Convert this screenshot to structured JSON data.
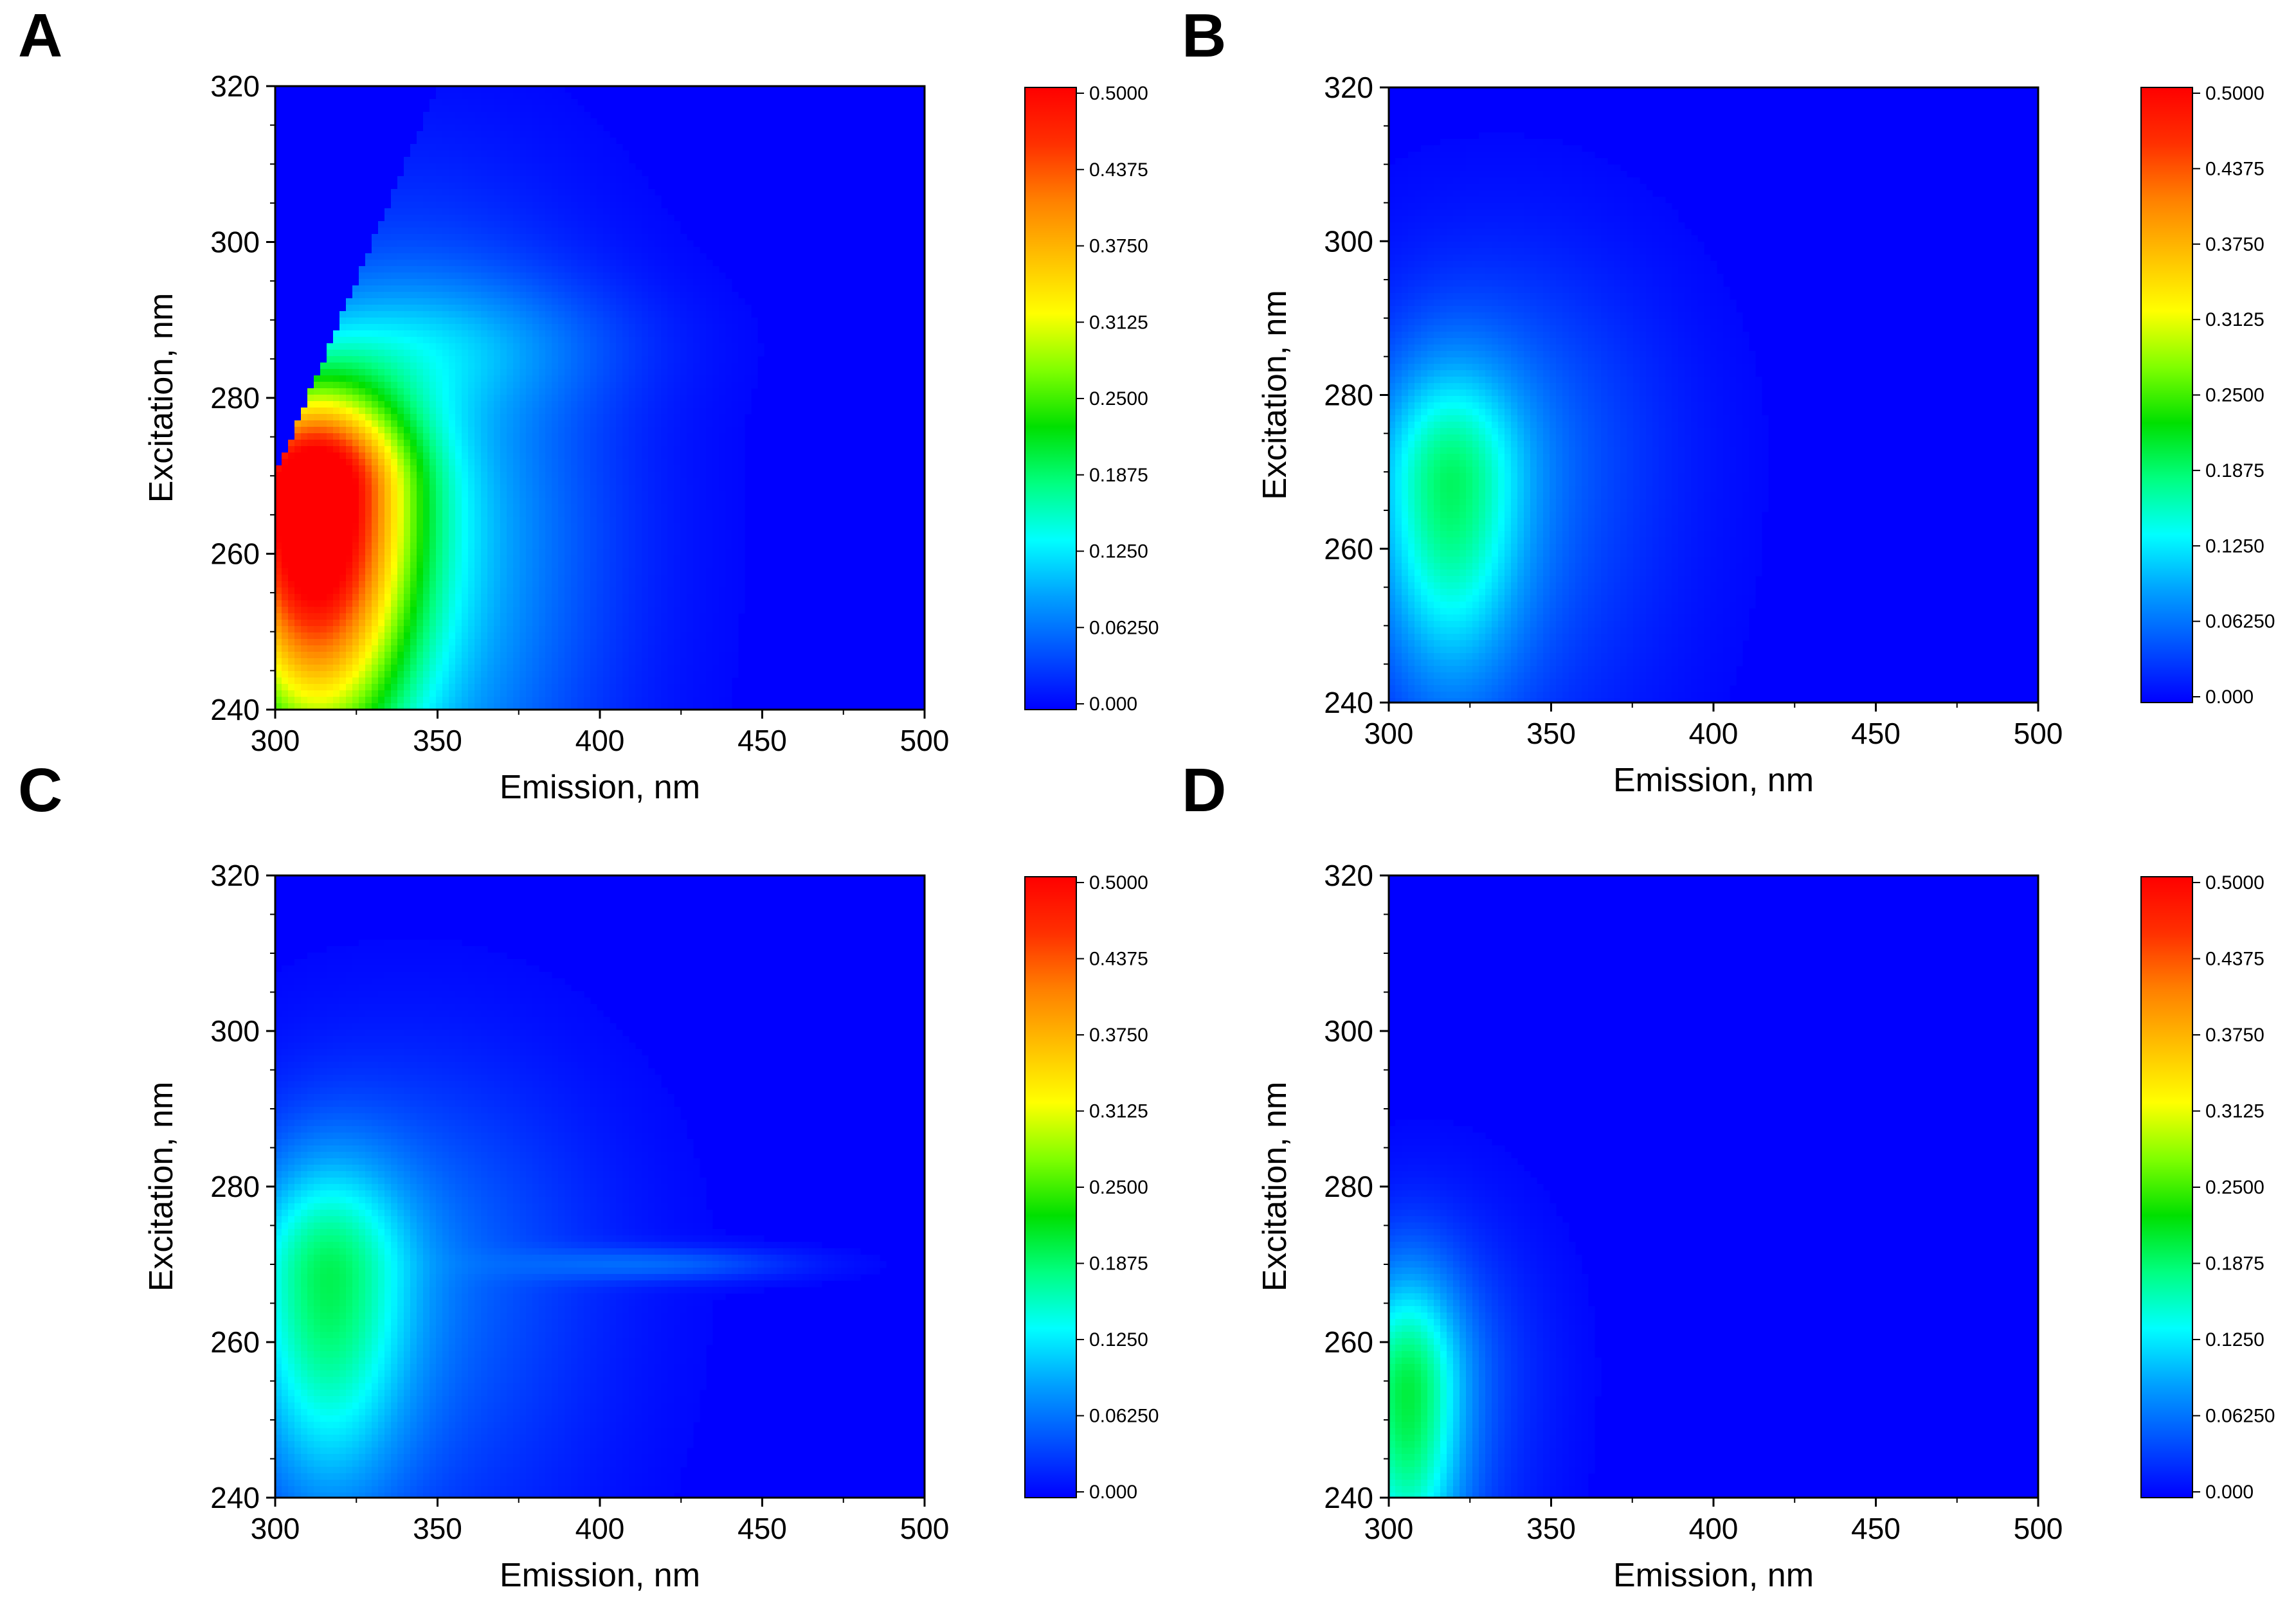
{
  "colors": {
    "background": "#0000ff",
    "colormap": [
      "#0000ff",
      "#0050ff",
      "#00a0ff",
      "#00ffff",
      "#00ff80",
      "#00e000",
      "#80ff00",
      "#ffff00",
      "#ffc000",
      "#ff8000",
      "#ff3000",
      "#ff0000"
    ]
  },
  "chart_data": [
    {
      "type": "heatmap",
      "panel": "A",
      "xlabel": "Emission, nm",
      "ylabel": "Excitation, nm",
      "xlim": [
        300,
        500
      ],
      "ylim": [
        240,
        320
      ],
      "x_ticks": [
        "300",
        "350",
        "400",
        "450",
        "500"
      ],
      "y_ticks": [
        "240",
        "260",
        "280",
        "300",
        "320"
      ],
      "colorbar": {
        "range": [
          0,
          0.5
        ],
        "labels": [
          "0.000",
          "0.06250",
          "0.1250",
          "0.1875",
          "0.2500",
          "0.3125",
          "0.3750",
          "0.4375",
          "0.5000"
        ]
      },
      "scatter_cutoff": {
        "emission_at_ex_270": 300,
        "emission_at_ex_300": 330
      },
      "features": [
        {
          "emission": 311,
          "excitation": 268,
          "intensity": 0.5,
          "sigma_em": 20,
          "sigma_ex_up": 9,
          "sigma_ex_down": 22
        },
        {
          "emission": 340,
          "excitation": 262,
          "intensity": 0.12,
          "sigma_em": 40,
          "sigma_ex_up": 25,
          "sigma_ex_down": 30
        },
        {
          "emission": 350,
          "excitation": 287,
          "intensity": 0.05,
          "sigma_em": 40,
          "sigma_ex_up": 6,
          "sigma_ex_down": 6
        }
      ]
    },
    {
      "type": "heatmap",
      "panel": "B",
      "xlabel": "Emission, nm",
      "ylabel": "Excitation, nm",
      "xlim": [
        300,
        500
      ],
      "ylim": [
        240,
        320
      ],
      "x_ticks": [
        "300",
        "350",
        "400",
        "450",
        "500"
      ],
      "y_ticks": [
        "240",
        "260",
        "280",
        "300",
        "320"
      ],
      "colorbar": {
        "range": [
          0,
          0.5
        ],
        "labels": [
          "0.000",
          "0.06250",
          "0.1250",
          "0.1875",
          "0.2500",
          "0.3125",
          "0.3750",
          "0.4375",
          "0.5000"
        ]
      },
      "features": [
        {
          "emission": 318,
          "excitation": 268,
          "intensity": 0.14,
          "sigma_em": 16,
          "sigma_ex_up": 11,
          "sigma_ex_down": 18
        },
        {
          "emission": 335,
          "excitation": 272,
          "intensity": 0.06,
          "sigma_em": 35,
          "sigma_ex_up": 18,
          "sigma_ex_down": 26
        }
      ]
    },
    {
      "type": "heatmap",
      "panel": "C",
      "xlabel": "Emission, nm",
      "ylabel": "Excitation, nm",
      "xlim": [
        300,
        500
      ],
      "ylim": [
        240,
        320
      ],
      "x_ticks": [
        "300",
        "350",
        "400",
        "450",
        "500"
      ],
      "y_ticks": [
        "240",
        "260",
        "280",
        "300",
        "320"
      ],
      "colorbar": {
        "range": [
          0,
          0.5
        ],
        "labels": [
          "0.000",
          "0.06250",
          "0.1250",
          "0.1875",
          "0.2500",
          "0.3125",
          "0.3750",
          "0.4375",
          "0.5000"
        ]
      },
      "features": [
        {
          "emission": 315,
          "excitation": 268,
          "intensity": 0.15,
          "sigma_em": 18,
          "sigma_ex_up": 11,
          "sigma_ex_down": 20
        },
        {
          "emission": 342,
          "excitation": 270,
          "intensity": 0.06,
          "sigma_em": 40,
          "sigma_ex_up": 18,
          "sigma_ex_down": 26
        },
        {
          "emission": 420,
          "excitation": 270,
          "intensity": 0.05,
          "sigma_em": 30,
          "sigma_ex_up": 1.5,
          "sigma_ex_down": 1.5
        }
      ]
    },
    {
      "type": "heatmap",
      "panel": "D",
      "xlabel": "Emission, nm",
      "ylabel": "Excitation, nm",
      "xlim": [
        300,
        500
      ],
      "ylim": [
        240,
        320
      ],
      "x_ticks": [
        "300",
        "350",
        "400",
        "450",
        "500"
      ],
      "y_ticks": [
        "240",
        "260",
        "280",
        "300",
        "320"
      ],
      "colorbar": {
        "range": [
          0,
          0.5
        ],
        "labels": [
          "0.000",
          "0.06250",
          "0.1250",
          "0.1875",
          "0.2500",
          "0.3125",
          "0.3750",
          "0.4375",
          "0.5000"
        ]
      },
      "features": [
        {
          "emission": 305,
          "excitation": 253,
          "intensity": 0.16,
          "sigma_em": 12,
          "sigma_ex_up": 11,
          "sigma_ex_down": 18
        },
        {
          "emission": 315,
          "excitation": 256,
          "intensity": 0.05,
          "sigma_em": 22,
          "sigma_ex_up": 14,
          "sigma_ex_down": 20
        }
      ]
    }
  ]
}
